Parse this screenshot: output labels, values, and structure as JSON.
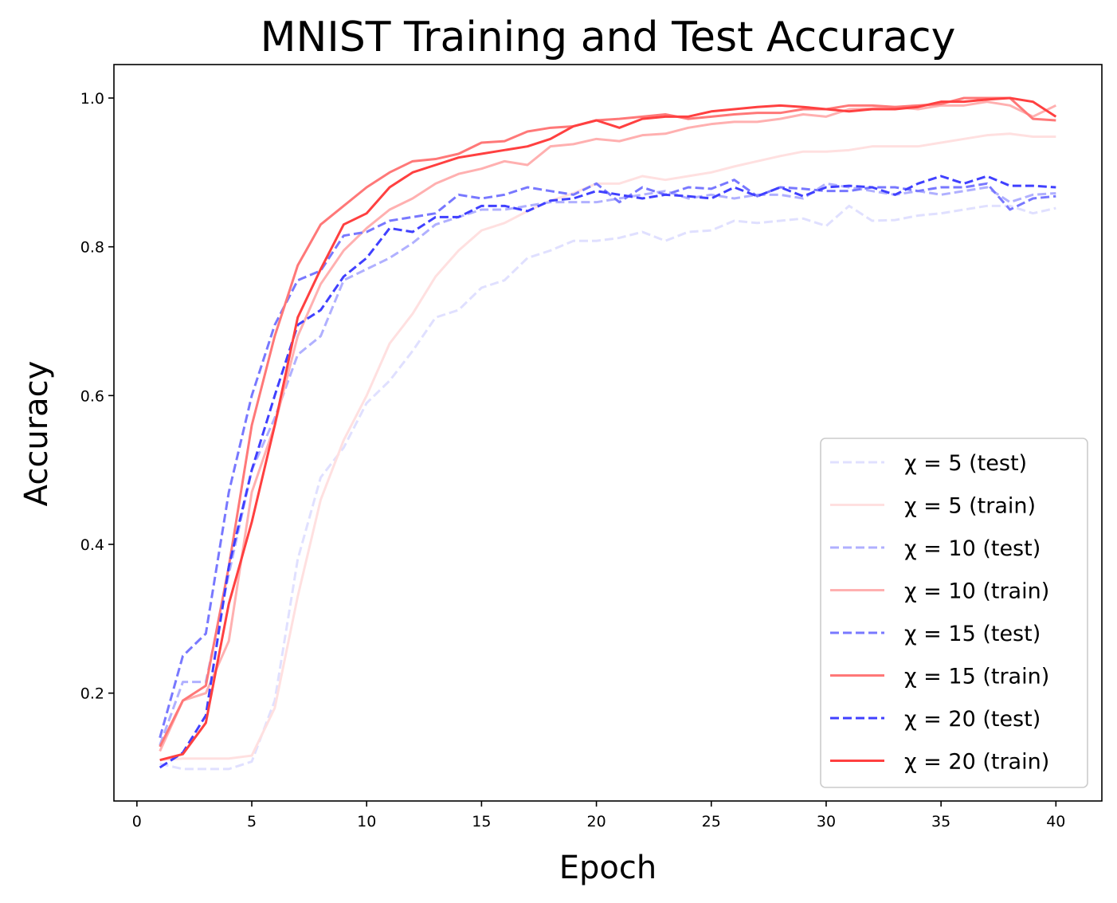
{
  "chart_data": {
    "type": "line",
    "title": "MNIST Training and Test Accuracy",
    "xlabel": "Epoch",
    "ylabel": "Accuracy",
    "xlim": [
      -1,
      42
    ],
    "ylim": [
      0.055,
      1.045
    ],
    "xticks": [
      0,
      5,
      10,
      15,
      20,
      25,
      30,
      35,
      40
    ],
    "yticks": [
      0.2,
      0.4,
      0.6,
      0.8,
      1.0
    ],
    "ytick_labels": [
      "0.2",
      "0.4",
      "0.6",
      "0.8",
      "1.0"
    ],
    "legend_position": "lower-right",
    "grid": false,
    "x": [
      1,
      2,
      3,
      4,
      5,
      6,
      7,
      8,
      9,
      10,
      11,
      12,
      13,
      14,
      15,
      16,
      17,
      18,
      19,
      20,
      21,
      22,
      23,
      24,
      25,
      26,
      27,
      28,
      29,
      30,
      31,
      32,
      33,
      34,
      35,
      36,
      37,
      38,
      39,
      40
    ],
    "series": [
      {
        "name": "χ = 5 (test)",
        "color": "#e0e0ff",
        "dash": true,
        "values": [
          0.105,
          0.098,
          0.098,
          0.098,
          0.108,
          0.19,
          0.38,
          0.49,
          0.53,
          0.59,
          0.62,
          0.66,
          0.705,
          0.715,
          0.745,
          0.755,
          0.785,
          0.795,
          0.808,
          0.808,
          0.812,
          0.82,
          0.808,
          0.82,
          0.822,
          0.835,
          0.832,
          0.835,
          0.838,
          0.828,
          0.855,
          0.835,
          0.836,
          0.842,
          0.845,
          0.85,
          0.855,
          0.855,
          0.845,
          0.852
        ]
      },
      {
        "name": "χ = 5 (train)",
        "color": "#ffe0e0",
        "dash": false,
        "values": [
          0.11,
          0.112,
          0.112,
          0.112,
          0.116,
          0.18,
          0.33,
          0.46,
          0.54,
          0.6,
          0.67,
          0.71,
          0.76,
          0.795,
          0.822,
          0.832,
          0.848,
          0.862,
          0.872,
          0.885,
          0.885,
          0.895,
          0.89,
          0.895,
          0.9,
          0.908,
          0.915,
          0.922,
          0.928,
          0.928,
          0.93,
          0.935,
          0.935,
          0.935,
          0.94,
          0.945,
          0.95,
          0.952,
          0.948,
          0.948
        ]
      },
      {
        "name": "χ = 10 (test)",
        "color": "#b0b0ff",
        "dash": true,
        "values": [
          0.13,
          0.215,
          0.215,
          0.36,
          0.5,
          0.57,
          0.655,
          0.68,
          0.755,
          0.77,
          0.785,
          0.805,
          0.83,
          0.84,
          0.85,
          0.85,
          0.855,
          0.86,
          0.86,
          0.86,
          0.865,
          0.87,
          0.875,
          0.865,
          0.87,
          0.865,
          0.87,
          0.87,
          0.865,
          0.885,
          0.88,
          0.875,
          0.87,
          0.875,
          0.87,
          0.875,
          0.88,
          0.86,
          0.87,
          0.872
        ]
      },
      {
        "name": "χ = 10 (train)",
        "color": "#ffb0b0",
        "dash": false,
        "values": [
          0.122,
          0.19,
          0.2,
          0.27,
          0.47,
          0.56,
          0.68,
          0.75,
          0.795,
          0.825,
          0.85,
          0.865,
          0.885,
          0.898,
          0.905,
          0.915,
          0.91,
          0.935,
          0.938,
          0.945,
          0.942,
          0.95,
          0.952,
          0.96,
          0.965,
          0.968,
          0.968,
          0.972,
          0.978,
          0.975,
          0.985,
          0.986,
          0.988,
          0.985,
          0.99,
          0.99,
          0.995,
          0.99,
          0.975,
          0.99
        ]
      },
      {
        "name": "χ = 15 (test)",
        "color": "#7878ff",
        "dash": true,
        "values": [
          0.14,
          0.25,
          0.28,
          0.47,
          0.6,
          0.695,
          0.755,
          0.768,
          0.815,
          0.82,
          0.835,
          0.84,
          0.845,
          0.87,
          0.865,
          0.87,
          0.88,
          0.875,
          0.87,
          0.885,
          0.86,
          0.88,
          0.87,
          0.88,
          0.878,
          0.89,
          0.868,
          0.88,
          0.878,
          0.875,
          0.875,
          0.88,
          0.88,
          0.875,
          0.88,
          0.88,
          0.885,
          0.85,
          0.865,
          0.868
        ]
      },
      {
        "name": "χ = 15 (train)",
        "color": "#ff7878",
        "dash": false,
        "values": [
          0.128,
          0.19,
          0.21,
          0.37,
          0.56,
          0.68,
          0.775,
          0.83,
          0.855,
          0.88,
          0.9,
          0.915,
          0.918,
          0.925,
          0.94,
          0.942,
          0.955,
          0.96,
          0.962,
          0.97,
          0.972,
          0.975,
          0.978,
          0.972,
          0.975,
          0.978,
          0.98,
          0.98,
          0.985,
          0.985,
          0.99,
          0.99,
          0.988,
          0.99,
          0.992,
          1.0,
          1.0,
          1.0,
          0.972,
          0.97
        ]
      },
      {
        "name": "χ = 20 (test)",
        "color": "#4040ff",
        "dash": true,
        "values": [
          0.1,
          0.12,
          0.17,
          0.37,
          0.5,
          0.6,
          0.695,
          0.715,
          0.76,
          0.785,
          0.825,
          0.82,
          0.84,
          0.84,
          0.855,
          0.855,
          0.848,
          0.862,
          0.865,
          0.875,
          0.87,
          0.865,
          0.87,
          0.868,
          0.865,
          0.88,
          0.868,
          0.88,
          0.868,
          0.88,
          0.882,
          0.88,
          0.87,
          0.885,
          0.895,
          0.885,
          0.895,
          0.882,
          0.882,
          0.88
        ]
      },
      {
        "name": "χ = 20 (train)",
        "color": "#ff4040",
        "dash": false,
        "values": [
          0.11,
          0.118,
          0.16,
          0.32,
          0.43,
          0.56,
          0.705,
          0.77,
          0.83,
          0.845,
          0.88,
          0.9,
          0.91,
          0.92,
          0.925,
          0.93,
          0.935,
          0.945,
          0.962,
          0.97,
          0.96,
          0.972,
          0.975,
          0.975,
          0.982,
          0.985,
          0.988,
          0.99,
          0.988,
          0.985,
          0.982,
          0.985,
          0.985,
          0.988,
          0.995,
          0.995,
          0.998,
          1.0,
          0.995,
          0.975
        ]
      }
    ]
  }
}
